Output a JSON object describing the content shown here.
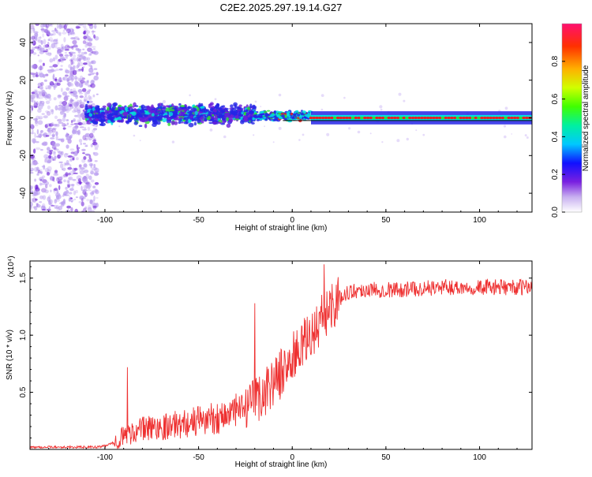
{
  "title": "C2E2.2025.297.19.14.G27",
  "colors": {
    "scatter_low": "#b89cf0",
    "scatter_mid": "#6b1ed8",
    "band_fill": "#2424e6",
    "band_cyan": "#00e0e0",
    "band_green": "#30e030",
    "band_red": "#e82020",
    "snr_line": "#ee3030",
    "axis": "#000000"
  },
  "chart_data": [
    {
      "id": "spectrogram",
      "type": "heatmap",
      "xlabel": "Height of straight line (km)",
      "ylabel": "Frequency (Hz)",
      "xlim": [
        -140,
        128
      ],
      "ylim": [
        -50,
        50
      ],
      "xticks": [
        -100,
        -50,
        0,
        50,
        100
      ],
      "yticks": [
        -40,
        -20,
        0,
        20,
        40
      ],
      "colorbar": {
        "label": "Normalized spectral amplitude",
        "range": [
          0,
          1
        ],
        "ticks": [
          0.0,
          0.2,
          0.4,
          0.6,
          0.8
        ],
        "tick_labels": [
          "0.0",
          "0.2",
          "0.4",
          "0.6",
          "0.8"
        ]
      },
      "regions": [
        {
          "name": "noise",
          "x": [
            -140,
            -104
          ],
          "freq": [
            -50,
            50
          ],
          "amplitude": [
            0.05,
            0.25
          ]
        },
        {
          "name": "onset",
          "x": [
            -110,
            -20
          ],
          "freq_center": 2,
          "freq_halfwidth": 7,
          "amplitude": [
            0.2,
            0.5
          ]
        },
        {
          "name": "transition",
          "x": [
            -20,
            10
          ],
          "freq_center": 1,
          "freq_halfwidth": 3,
          "amplitude": [
            0.3,
            0.8
          ]
        },
        {
          "name": "tone",
          "x": [
            10,
            128
          ],
          "freq_center": 0,
          "freq_halfwidth": 1.5,
          "amplitude": [
            0.8,
            1.0
          ]
        }
      ]
    },
    {
      "id": "snr",
      "type": "line",
      "xlabel": "Height of straight line (km)",
      "ylabel": "SNR (10 * v/v)",
      "yscale_label": "(x10⁴)",
      "xlim": [
        -140,
        128
      ],
      "ylim": [
        0,
        1.65
      ],
      "xticks": [
        -100,
        -50,
        0,
        50,
        100
      ],
      "yticks": [
        0.5,
        1.0,
        1.5
      ],
      "ytick_labels": [
        "0.5",
        "1.0",
        "1.5"
      ],
      "profile": {
        "x": [
          -140,
          -104,
          -100,
          -95,
          -90,
          -80,
          -60,
          -40,
          -25,
          -15,
          -10,
          -5,
          0,
          5,
          10,
          15,
          20,
          25,
          30,
          40,
          50,
          60,
          80,
          100,
          128
        ],
        "y": [
          0.02,
          0.02,
          0.03,
          0.06,
          0.12,
          0.18,
          0.22,
          0.28,
          0.35,
          0.5,
          0.6,
          0.68,
          0.8,
          0.9,
          1.0,
          1.12,
          1.25,
          1.32,
          1.38,
          1.4,
          1.4,
          1.4,
          1.42,
          1.42,
          1.42
        ]
      },
      "peaks": [
        {
          "x": -88,
          "y": 0.72
        },
        {
          "x": -20,
          "y": 1.28
        },
        {
          "x": 17,
          "y": 1.62
        }
      ]
    }
  ]
}
